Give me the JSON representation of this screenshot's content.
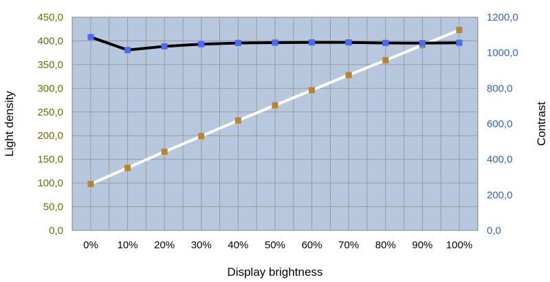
{
  "chart_data": {
    "type": "line",
    "categories": [
      "0%",
      "10%",
      "20%",
      "30%",
      "40%",
      "50%",
      "60%",
      "70%",
      "80%",
      "90%",
      "100%"
    ],
    "xlabel": "Display brightness",
    "y_left": {
      "label": "Light density",
      "range": [
        0,
        450
      ],
      "ticks": [
        "0,0",
        "50,0",
        "100,0",
        "150,0",
        "200,0",
        "250,0",
        "300,0",
        "350,0",
        "400,0",
        "450,0"
      ],
      "tick_color": "#6b6b00"
    },
    "y_right": {
      "label": "Contrast",
      "range": [
        0,
        1200
      ],
      "ticks": [
        "0,0",
        "200,0",
        "400,0",
        "600,0",
        "800,0",
        "1000,0",
        "1200,0"
      ],
      "tick_color": "#2f5fd0"
    },
    "series": [
      {
        "axis": "left",
        "values": [
          98,
          132,
          166,
          199,
          232,
          264,
          296,
          328,
          359,
          391,
          423
        ],
        "line_color": "#ffffff",
        "marker_color": "#b8862a"
      },
      {
        "axis": "right",
        "values": [
          1088,
          1015,
          1036,
          1048,
          1055,
          1057,
          1058,
          1058,
          1055,
          1054,
          1056
        ],
        "line_color": "#000000",
        "marker_color": "#4a6cf0"
      }
    ],
    "grid": true,
    "plot_background": "#b7c8de",
    "gridline_color": "#9a9a9a"
  }
}
